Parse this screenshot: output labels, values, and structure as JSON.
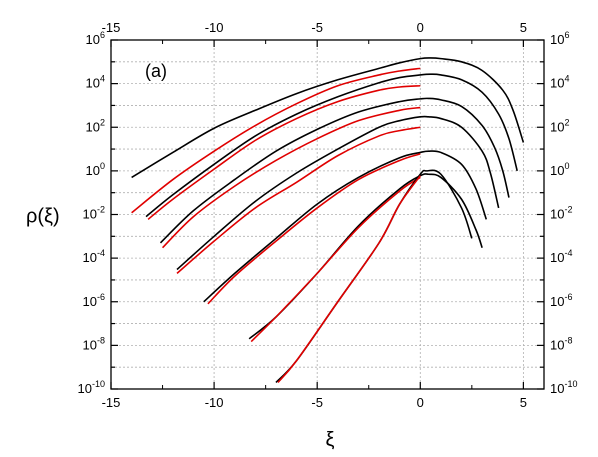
{
  "chart_data": {
    "type": "line",
    "title": "",
    "xlabel": "ξ",
    "ylabel": "ρ(ξ)",
    "annotation": "(a)",
    "xlim": [
      -15,
      6
    ],
    "ylim": [
      1e-10,
      1000000.0
    ],
    "yscale": "log",
    "grid": true,
    "x_ticks": [
      -15,
      -10,
      -5,
      0,
      5
    ],
    "x_tick_labels": [
      "-15",
      "-10",
      "-5",
      "0",
      "5"
    ],
    "x_top_ticks": [
      -15,
      -10,
      -5,
      0,
      5
    ],
    "x_top_tick_labels": [
      "-15",
      "-10",
      "-5",
      "0",
      "5"
    ],
    "y_tick_exponents": [
      -10,
      -8,
      -6,
      -4,
      -2,
      0,
      2,
      4,
      6
    ],
    "colors": {
      "black_series": "#000000",
      "red_series": "#e00000",
      "grid": "#b0b0b0"
    },
    "series": [
      {
        "color": "black",
        "x": [
          -14.0,
          -12.0,
          -10.0,
          -8.0,
          -6.0,
          -4.0,
          -2.0,
          -1.0,
          0.0,
          0.5,
          1.0,
          2.0,
          3.0,
          4.0,
          4.5,
          5.0
        ],
        "y": [
          0.5,
          7,
          90,
          600,
          3500,
          15000,
          50000,
          90000,
          140000,
          150000,
          140000,
          100000,
          40000,
          5000,
          600,
          20
        ]
      },
      {
        "color": "red",
        "x": [
          -14.0,
          -12.0,
          -10.0,
          -8.0,
          -6.0,
          -4.0,
          -2.0,
          -1.0,
          0.0
        ],
        "y": [
          0.012,
          0.4,
          8,
          120,
          1200,
          8000,
          25000,
          38000,
          50000
        ]
      },
      {
        "color": "black",
        "x": [
          -13.3,
          -12.0,
          -10.0,
          -8.0,
          -6.0,
          -4.0,
          -2.0,
          -1.0,
          0.0,
          0.5,
          1.0,
          2.0,
          3.0,
          3.8,
          4.3,
          4.7
        ],
        "y": [
          0.008,
          0.08,
          2,
          40,
          400,
          2500,
          11000,
          19000,
          25000,
          27000,
          25000,
          15000,
          4000,
          400,
          30,
          1
        ]
      },
      {
        "color": "red",
        "x": [
          -13.2,
          -12.0,
          -10.0,
          -8.0,
          -6.0,
          -4.0,
          -2.0,
          -1.0,
          0.0
        ],
        "y": [
          0.006,
          0.05,
          1.2,
          25,
          250,
          1500,
          5000,
          7000,
          8000
        ]
      },
      {
        "color": "black",
        "x": [
          -12.6,
          -11.0,
          -9.0,
          -7.0,
          -5.0,
          -3.0,
          -1.0,
          0.0,
          0.4,
          1.0,
          2.0,
          3.0,
          3.6,
          4.0,
          4.3
        ],
        "y": [
          0.0005,
          0.015,
          0.4,
          8,
          80,
          500,
          1500,
          2000,
          2100,
          1800,
          900,
          120,
          12,
          1,
          0.06
        ]
      },
      {
        "color": "red",
        "x": [
          -12.5,
          -11.0,
          -9.0,
          -7.0,
          -5.0,
          -3.0,
          -1.0,
          0.0
        ],
        "y": [
          0.0003,
          0.008,
          0.2,
          3,
          30,
          200,
          600,
          800
        ]
      },
      {
        "color": "black",
        "x": [
          -11.8,
          -10.0,
          -8.0,
          -6.0,
          -4.0,
          -2.0,
          -1.0,
          0.0,
          0.4,
          1.0,
          2.0,
          3.0,
          3.4,
          3.8
        ],
        "y": [
          3e-05,
          0.001,
          0.04,
          0.8,
          10,
          100,
          200,
          300,
          300,
          250,
          100,
          8,
          0.8,
          0.02
        ]
      },
      {
        "color": "red",
        "x": [
          -11.8,
          -10.0,
          -8.0,
          -6.0,
          -4.0,
          -2.0,
          -1.0,
          0.0
        ],
        "y": [
          2e-05,
          0.0006,
          0.02,
          0.3,
          5,
          40,
          70,
          100
        ]
      },
      {
        "color": "black",
        "x": [
          -10.5,
          -9.0,
          -7.0,
          -5.0,
          -3.0,
          -1.0,
          0.0,
          0.4,
          1.0,
          2.0,
          2.7,
          3.2
        ],
        "y": [
          1e-06,
          2e-05,
          0.0008,
          0.03,
          0.5,
          4,
          7,
          8,
          7,
          2,
          0.15,
          0.006
        ]
      },
      {
        "color": "red",
        "x": [
          -10.3,
          -9.0,
          -7.0,
          -5.0,
          -3.0,
          -1.0,
          0.0
        ],
        "y": [
          8e-07,
          1.5e-05,
          0.0006,
          0.02,
          0.4,
          3,
          6
        ]
      },
      {
        "color": "black",
        "x": [
          -8.3,
          -7.0,
          -5.0,
          -3.0,
          -1.0,
          0.0,
          0.4,
          1.0,
          2.0,
          2.7,
          3.0
        ],
        "y": [
          2e-08,
          2e-07,
          2e-05,
          0.003,
          0.15,
          0.6,
          0.7,
          0.5,
          0.05,
          0.002,
          0.0003
        ]
      },
      {
        "color": "red",
        "x": [
          -8.2,
          -7.0,
          -5.0,
          -3.0,
          -1.0,
          0.0
        ],
        "y": [
          1.5e-08,
          2e-07,
          2e-05,
          0.0025,
          0.12,
          0.5
        ]
      },
      {
        "color": "black",
        "x": [
          -7.0,
          -6.0,
          -4.0,
          -2.0,
          -1.0,
          0.0,
          0.3,
          1.0,
          2.0,
          2.5
        ],
        "y": [
          2e-10,
          2e-09,
          1e-06,
          0.0005,
          0.03,
          0.7,
          1,
          0.7,
          0.02,
          0.0008
        ]
      },
      {
        "color": "red",
        "x": [
          -6.9,
          -6.0,
          -4.0,
          -2.0,
          -1.0,
          0.0
        ],
        "y": [
          2e-10,
          2e-09,
          1e-06,
          0.0005,
          0.03,
          0.6
        ]
      }
    ]
  }
}
